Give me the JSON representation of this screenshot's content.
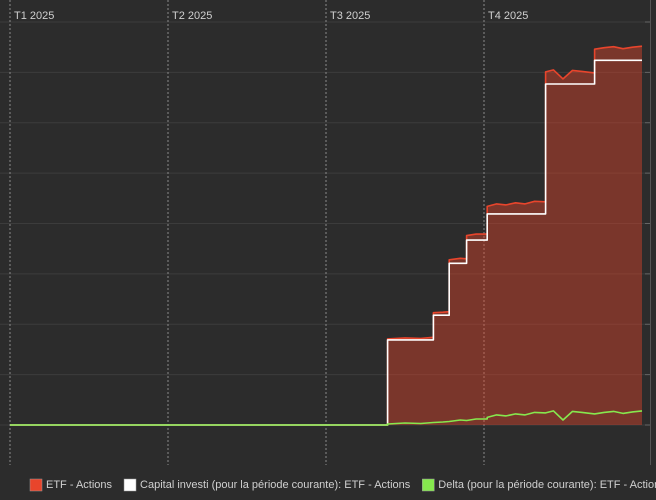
{
  "chart_data": {
    "type": "line",
    "x": [
      0,
      2.39,
      2.39,
      2.5,
      2.6,
      2.68,
      2.68,
      2.74,
      2.78,
      2.78,
      2.85,
      2.89,
      2.89,
      2.95,
      3.02,
      3.02,
      3.08,
      3.14,
      3.2,
      3.26,
      3.32,
      3.39,
      3.39,
      3.44,
      3.5,
      3.56,
      3.62,
      3.7,
      3.7,
      3.76,
      3.82,
      3.88,
      3.94,
      4.0
    ],
    "series": [
      {
        "name": "ETF - Actions",
        "color": "#e8452c",
        "fill": "area",
        "values": [
          0,
          0,
          1.71,
          1.73,
          1.72,
          1.74,
          2.23,
          2.24,
          2.25,
          3.28,
          3.31,
          3.3,
          3.76,
          3.79,
          3.79,
          4.34,
          4.39,
          4.37,
          4.41,
          4.39,
          4.44,
          4.43,
          7.01,
          7.05,
          6.87,
          7.04,
          7.02,
          6.99,
          7.46,
          7.49,
          7.51,
          7.47,
          7.5,
          7.52
        ]
      },
      {
        "name": "Capital investi (pour la période courante): ETF - Actions",
        "color": "#ffffff",
        "values": [
          0,
          0,
          1.69,
          1.69,
          1.69,
          1.69,
          2.18,
          2.18,
          2.18,
          3.21,
          3.21,
          3.21,
          3.67,
          3.67,
          3.67,
          4.19,
          4.19,
          4.19,
          4.19,
          4.19,
          4.19,
          4.19,
          6.77,
          6.77,
          6.77,
          6.77,
          6.77,
          6.77,
          7.24,
          7.24,
          7.24,
          7.24,
          7.24,
          7.24
        ]
      },
      {
        "name": "Delta (pour la période courante): ETF - Actions",
        "color": "#86e84e",
        "values": [
          0,
          0,
          0.02,
          0.04,
          0.03,
          0.05,
          0.05,
          0.06,
          0.07,
          0.07,
          0.1,
          0.09,
          0.09,
          0.12,
          0.12,
          0.15,
          0.2,
          0.18,
          0.22,
          0.2,
          0.25,
          0.24,
          0.24,
          0.28,
          0.1,
          0.27,
          0.25,
          0.22,
          0.22,
          0.25,
          0.27,
          0.23,
          0.26,
          0.28
        ]
      }
    ],
    "xlim": [
      0,
      4
    ],
    "xticks": [
      {
        "value": 0,
        "label": "T1 2025"
      },
      {
        "value": 1,
        "label": "T2 2025"
      },
      {
        "value": 2,
        "label": "T3 2025"
      },
      {
        "value": 3,
        "label": "T4 2025"
      }
    ],
    "ylim": [
      0,
      8
    ],
    "yticks": [
      0,
      1,
      2,
      3,
      4,
      5,
      6,
      7,
      8
    ],
    "grid": true,
    "legend": "bottom"
  }
}
